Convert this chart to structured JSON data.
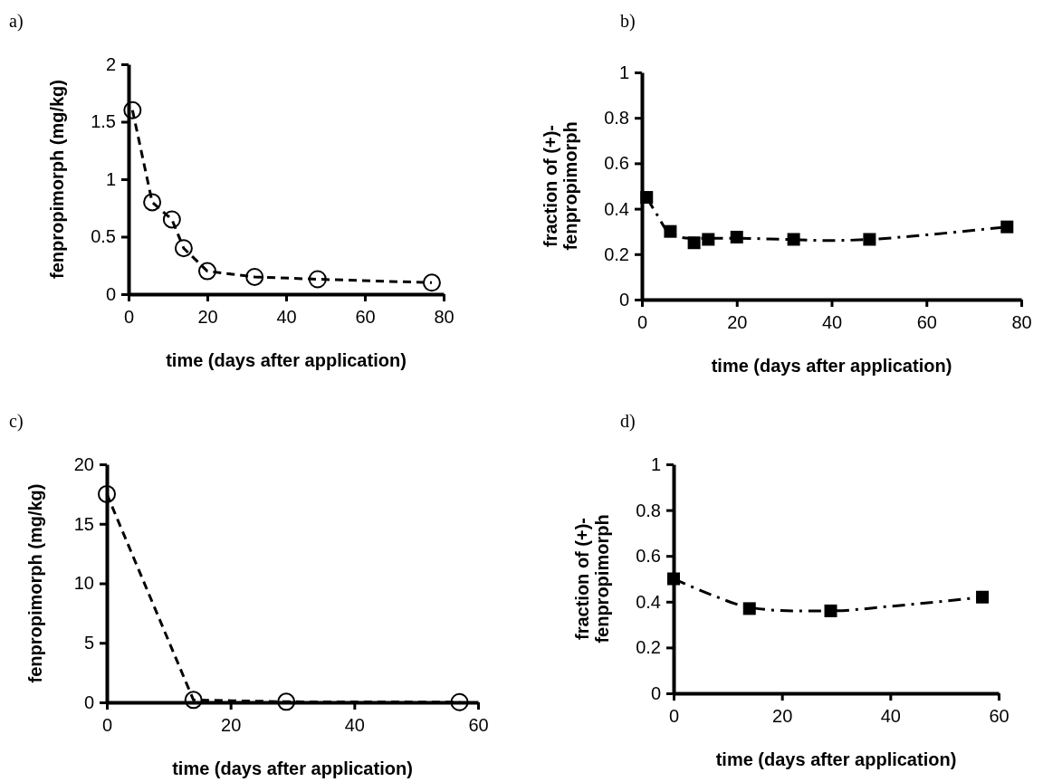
{
  "chart_data": [
    {
      "type": "line",
      "title": "a)",
      "xlabel": "time (days after application)",
      "ylabel": "fenpropimorph (mg/kg)",
      "xlim": [
        0,
        80
      ],
      "xticks": [
        0,
        20,
        40,
        60,
        80
      ],
      "ylim": [
        0,
        2
      ],
      "yticks": [
        0,
        0.5,
        1,
        1.5,
        2
      ],
      "grid": false,
      "marker": "circle",
      "line_style": "dashed",
      "series": [
        {
          "color": "#000000",
          "x": [
            1,
            6,
            11,
            14,
            20,
            32,
            48,
            77
          ],
          "values": [
            1.6,
            0.8,
            0.65,
            0.4,
            0.2,
            0.15,
            0.13,
            0.1
          ]
        }
      ]
    },
    {
      "type": "scatter",
      "title": "b)",
      "xlabel": "time (days after application)",
      "ylabel": "fraction of (+)-fenpropimorph",
      "xlim": [
        0,
        80
      ],
      "xticks": [
        0,
        20,
        40,
        60,
        80
      ],
      "ylim": [
        0,
        1
      ],
      "yticks": [
        0,
        0.2,
        0.4,
        0.6,
        0.8,
        1
      ],
      "grid": false,
      "marker": "square",
      "series": [
        {
          "color": "#000000",
          "x": [
            1,
            6,
            11,
            14,
            20,
            32,
            48,
            77
          ],
          "values": [
            0.45,
            0.3,
            0.25,
            0.265,
            0.275,
            0.265,
            0.265,
            0.32
          ]
        },
        {
          "type": "line",
          "marker": "none",
          "line_style": "dashdot",
          "color": "#000000",
          "x": [
            1,
            3,
            6,
            10,
            20,
            30,
            40,
            48,
            60,
            77
          ],
          "values": [
            0.45,
            0.38,
            0.29,
            0.27,
            0.27,
            0.265,
            0.26,
            0.265,
            0.285,
            0.32
          ]
        }
      ]
    },
    {
      "type": "line",
      "title": "c)",
      "xlabel": "time (days after application)",
      "ylabel": "fenpropimorph (mg/kg)",
      "xlim": [
        0,
        60
      ],
      "xticks": [
        0,
        20,
        40,
        60
      ],
      "ylim": [
        0,
        20
      ],
      "yticks": [
        0,
        5,
        10,
        15,
        20
      ],
      "grid": false,
      "marker": "circle",
      "line_style": "dashed",
      "series": [
        {
          "color": "#000000",
          "x": [
            0,
            14,
            29,
            57
          ],
          "values": [
            17.5,
            0.2,
            0.05,
            0.02
          ]
        }
      ]
    },
    {
      "type": "scatter",
      "title": "d)",
      "xlabel": "time (days after application)",
      "ylabel": "fraction of (+)-fenpropimorph",
      "xlim": [
        0,
        60
      ],
      "xticks": [
        0,
        20,
        40,
        60
      ],
      "ylim": [
        0,
        1
      ],
      "yticks": [
        0,
        0.2,
        0.4,
        0.6,
        0.8,
        1
      ],
      "grid": false,
      "marker": "square",
      "series": [
        {
          "color": "#000000",
          "x": [
            0,
            14,
            29,
            57
          ],
          "values": [
            0.5,
            0.37,
            0.36,
            0.42
          ]
        },
        {
          "type": "line",
          "marker": "none",
          "line_style": "dashdot",
          "color": "#000000",
          "x": [
            0,
            7,
            14,
            22,
            29,
            40,
            57
          ],
          "values": [
            0.5,
            0.43,
            0.375,
            0.36,
            0.36,
            0.38,
            0.42
          ]
        }
      ]
    }
  ]
}
